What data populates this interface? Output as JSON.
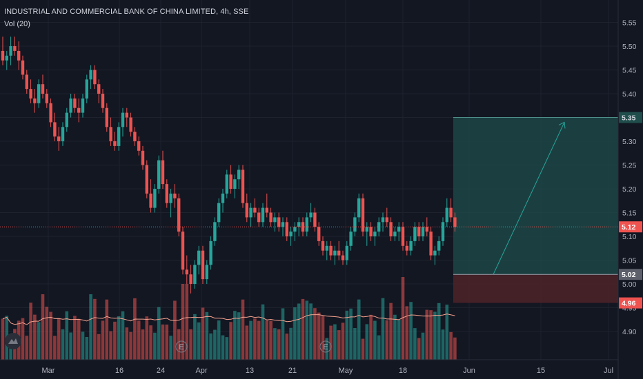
{
  "header": {
    "symbol_line": "INDUSTRIAL AND COMMERCIAL BANK OF CHINA LIMITED, 4h, SSE",
    "indicator_line": "Vol (20)"
  },
  "colors": {
    "background": "#131722",
    "up": "#26a69a",
    "down": "#ef5350",
    "grid": "#1e222d",
    "target_zone": "#1f4e4c",
    "stop_zone": "#4a2228",
    "volume_ma": "#f7a28f"
  },
  "chart_data": {
    "type": "candlestick",
    "timeframe": "4h",
    "price_axis": {
      "ticks": [
        "5.55",
        "5.50",
        "5.45",
        "5.40",
        "5.35",
        "5.30",
        "5.25",
        "5.20",
        "5.15",
        "5.10",
        "5.05",
        "5.00",
        "4.95",
        "4.90"
      ],
      "range": [
        4.875,
        5.575
      ]
    },
    "time_axis": {
      "labels": [
        "Mar",
        "16",
        "24",
        "Apr",
        "13",
        "21",
        "May",
        "18",
        "Jun",
        "15",
        "Jul"
      ]
    },
    "current_price": "5.12",
    "position": {
      "target": "5.35",
      "entry": "5.02",
      "stop": "4.96"
    },
    "candles": [
      [
        5.49,
        5.52,
        5.46,
        5.47
      ],
      [
        5.47,
        5.49,
        5.45,
        5.48
      ],
      [
        5.48,
        5.52,
        5.46,
        5.5
      ],
      [
        5.5,
        5.52,
        5.48,
        5.49
      ],
      [
        5.49,
        5.51,
        5.45,
        5.47
      ],
      [
        5.47,
        5.48,
        5.43,
        5.44
      ],
      [
        5.44,
        5.45,
        5.4,
        5.41
      ],
      [
        5.41,
        5.43,
        5.38,
        5.39
      ],
      [
        5.39,
        5.41,
        5.36,
        5.38
      ],
      [
        5.38,
        5.43,
        5.37,
        5.42
      ],
      [
        5.42,
        5.44,
        5.39,
        5.4
      ],
      [
        5.4,
        5.41,
        5.37,
        5.38
      ],
      [
        5.38,
        5.39,
        5.33,
        5.34
      ],
      [
        5.34,
        5.36,
        5.3,
        5.31
      ],
      [
        5.31,
        5.33,
        5.28,
        5.3
      ],
      [
        5.3,
        5.34,
        5.29,
        5.33
      ],
      [
        5.33,
        5.37,
        5.32,
        5.36
      ],
      [
        5.36,
        5.4,
        5.35,
        5.39
      ],
      [
        5.39,
        5.4,
        5.36,
        5.37
      ],
      [
        5.37,
        5.39,
        5.34,
        5.36
      ],
      [
        5.36,
        5.4,
        5.35,
        5.39
      ],
      [
        5.39,
        5.44,
        5.38,
        5.43
      ],
      [
        5.43,
        5.46,
        5.41,
        5.45
      ],
      [
        5.45,
        5.46,
        5.41,
        5.42
      ],
      [
        5.42,
        5.43,
        5.38,
        5.4
      ],
      [
        5.4,
        5.41,
        5.36,
        5.37
      ],
      [
        5.37,
        5.38,
        5.32,
        5.33
      ],
      [
        5.33,
        5.35,
        5.29,
        5.3
      ],
      [
        5.3,
        5.32,
        5.28,
        5.29
      ],
      [
        5.29,
        5.34,
        5.28,
        5.33
      ],
      [
        5.33,
        5.37,
        5.31,
        5.36
      ],
      [
        5.36,
        5.37,
        5.33,
        5.35
      ],
      [
        5.35,
        5.36,
        5.31,
        5.32
      ],
      [
        5.32,
        5.33,
        5.29,
        5.3
      ],
      [
        5.3,
        5.31,
        5.27,
        5.28
      ],
      [
        5.28,
        5.29,
        5.24,
        5.25
      ],
      [
        5.25,
        5.26,
        5.18,
        5.19
      ],
      [
        5.19,
        5.22,
        5.15,
        5.16
      ],
      [
        5.16,
        5.21,
        5.15,
        5.2
      ],
      [
        5.2,
        5.27,
        5.19,
        5.26
      ],
      [
        5.26,
        5.28,
        5.2,
        5.21
      ],
      [
        5.21,
        5.22,
        5.16,
        5.17
      ],
      [
        5.17,
        5.2,
        5.14,
        5.19
      ],
      [
        5.19,
        5.21,
        5.16,
        5.18
      ],
      [
        5.18,
        5.19,
        5.1,
        5.11
      ],
      [
        5.11,
        5.12,
        5.02,
        5.03
      ],
      [
        5.03,
        5.06,
        5.0,
        5.02
      ],
      [
        5.02,
        5.04,
        4.98,
        5.0
      ],
      [
        5.0,
        5.05,
        4.99,
        5.04
      ],
      [
        5.04,
        5.08,
        5.02,
        5.07
      ],
      [
        5.07,
        5.08,
        5.0,
        5.01
      ],
      [
        5.01,
        5.05,
        5.0,
        5.04
      ],
      [
        5.04,
        5.1,
        5.03,
        5.09
      ],
      [
        5.09,
        5.14,
        5.08,
        5.13
      ],
      [
        5.13,
        5.18,
        5.12,
        5.17
      ],
      [
        5.17,
        5.2,
        5.15,
        5.19
      ],
      [
        5.19,
        5.24,
        5.18,
        5.23
      ],
      [
        5.23,
        5.25,
        5.19,
        5.2
      ],
      [
        5.2,
        5.23,
        5.18,
        5.22
      ],
      [
        5.22,
        5.25,
        5.2,
        5.24
      ],
      [
        5.24,
        5.25,
        5.16,
        5.17
      ],
      [
        5.17,
        5.19,
        5.13,
        5.14
      ],
      [
        5.14,
        5.17,
        5.12,
        5.16
      ],
      [
        5.16,
        5.18,
        5.14,
        5.15
      ],
      [
        5.15,
        5.16,
        5.12,
        5.13
      ],
      [
        5.13,
        5.17,
        5.12,
        5.16
      ],
      [
        5.16,
        5.19,
        5.14,
        5.15
      ],
      [
        5.15,
        5.16,
        5.12,
        5.13
      ],
      [
        5.13,
        5.15,
        5.11,
        5.14
      ],
      [
        5.14,
        5.15,
        5.11,
        5.12
      ],
      [
        5.12,
        5.14,
        5.1,
        5.13
      ],
      [
        5.13,
        5.14,
        5.09,
        5.1
      ],
      [
        5.1,
        5.12,
        5.08,
        5.11
      ],
      [
        5.11,
        5.13,
        5.09,
        5.12
      ],
      [
        5.12,
        5.14,
        5.1,
        5.13
      ],
      [
        5.13,
        5.14,
        5.1,
        5.11
      ],
      [
        5.11,
        5.15,
        5.1,
        5.14
      ],
      [
        5.14,
        5.17,
        5.13,
        5.15
      ],
      [
        5.15,
        5.16,
        5.11,
        5.12
      ],
      [
        5.12,
        5.13,
        5.08,
        5.09
      ],
      [
        5.09,
        5.1,
        5.06,
        5.07
      ],
      [
        5.07,
        5.09,
        5.05,
        5.08
      ],
      [
        5.08,
        5.09,
        5.05,
        5.06
      ],
      [
        5.06,
        5.08,
        5.04,
        5.07
      ],
      [
        5.07,
        5.09,
        5.05,
        5.06
      ],
      [
        5.06,
        5.07,
        5.04,
        5.05
      ],
      [
        5.05,
        5.09,
        5.04,
        5.08
      ],
      [
        5.08,
        5.12,
        5.07,
        5.11
      ],
      [
        5.11,
        5.15,
        5.1,
        5.14
      ],
      [
        5.14,
        5.19,
        5.13,
        5.18
      ],
      [
        5.18,
        5.19,
        5.1,
        5.11
      ],
      [
        5.11,
        5.13,
        5.08,
        5.12
      ],
      [
        5.12,
        5.13,
        5.09,
        5.1
      ],
      [
        5.1,
        5.12,
        5.08,
        5.11
      ],
      [
        5.11,
        5.14,
        5.1,
        5.13
      ],
      [
        5.13,
        5.15,
        5.11,
        5.14
      ],
      [
        5.14,
        5.16,
        5.12,
        5.13
      ],
      [
        5.13,
        5.14,
        5.09,
        5.1
      ],
      [
        5.1,
        5.12,
        5.09,
        5.11
      ],
      [
        5.11,
        5.13,
        5.09,
        5.12
      ],
      [
        5.12,
        5.13,
        5.07,
        5.08
      ],
      [
        5.08,
        5.09,
        5.06,
        5.07
      ],
      [
        5.07,
        5.1,
        5.06,
        5.09
      ],
      [
        5.09,
        5.13,
        5.08,
        5.12
      ],
      [
        5.12,
        5.13,
        5.09,
        5.1
      ],
      [
        5.1,
        5.13,
        5.09,
        5.12
      ],
      [
        5.12,
        5.14,
        5.1,
        5.11
      ],
      [
        5.11,
        5.12,
        5.05,
        5.06
      ],
      [
        5.06,
        5.08,
        5.04,
        5.07
      ],
      [
        5.07,
        5.1,
        5.06,
        5.09
      ],
      [
        5.09,
        5.14,
        5.08,
        5.13
      ],
      [
        5.13,
        5.18,
        5.12,
        5.16
      ],
      [
        5.16,
        5.18,
        5.13,
        5.14
      ],
      [
        5.14,
        5.15,
        5.11,
        5.12
      ]
    ],
    "volume": {
      "label": "Vol (20)",
      "ma_period": 20
    }
  }
}
